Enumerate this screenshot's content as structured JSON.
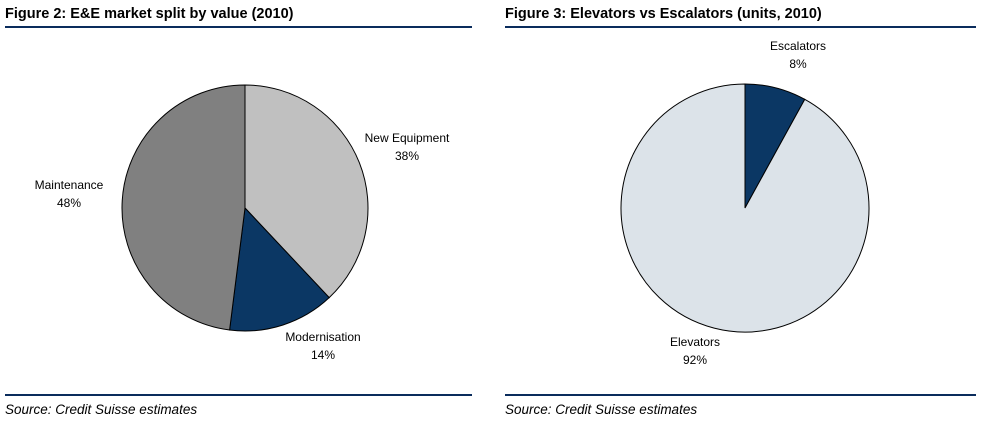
{
  "figures": [
    {
      "title": "Figure 2: E&E market split by value (2010)",
      "source": "Source: Credit Suisse estimates",
      "chart_data": {
        "type": "pie",
        "title": "Figure 2: E&E market split by value (2010)",
        "start_angle_deg": 0,
        "direction": "clockwise",
        "slices": [
          {
            "name": "New Equipment",
            "value": 38,
            "label": "38%",
            "color": "#c0c0c0"
          },
          {
            "name": "Modernisation",
            "value": 14,
            "label": "14%",
            "color": "#0b3764"
          },
          {
            "name": "Maintenance",
            "value": 48,
            "label": "48%",
            "color": "#808080"
          }
        ]
      }
    },
    {
      "title": "Figure 3: Elevators vs Escalators (units, 2010)",
      "source": "Source: Credit Suisse estimates",
      "chart_data": {
        "type": "pie",
        "title": "Figure 3: Elevators vs Escalators (units, 2010)",
        "start_angle_deg": 0,
        "direction": "clockwise",
        "slices": [
          {
            "name": "Escalators",
            "value": 8,
            "label": "8%",
            "color": "#0b3764"
          },
          {
            "name": "Elevators",
            "value": 92,
            "label": "92%",
            "color": "#dce3e9"
          }
        ]
      }
    }
  ]
}
